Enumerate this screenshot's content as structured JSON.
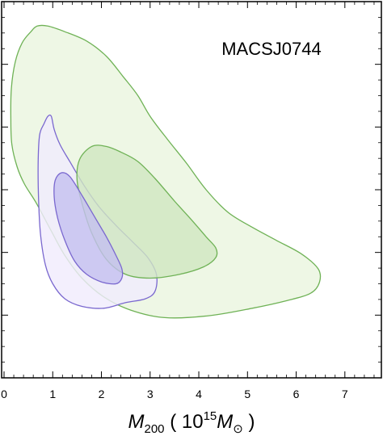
{
  "chart_data": {
    "type": "contour",
    "label": "MACSJ0744",
    "x_axis": {
      "label_main": "M",
      "label_sub": "200",
      "label_units_prefix": "( 10",
      "label_units_sup": "15",
      "label_units_M": "M",
      "label_units_sub": "⊙",
      "label_units_suffix": " )",
      "range": [
        -0.05,
        7.75
      ],
      "ticks": [
        0,
        1,
        2,
        3,
        4,
        5,
        6,
        7
      ],
      "tick_labels": [
        "0",
        "1",
        "2",
        "3",
        "4",
        "5",
        "6",
        "7"
      ]
    },
    "y_axis": {
      "tick_labels_visible": false,
      "range": [
        0,
        1
      ]
    },
    "grid": false,
    "series": [
      {
        "color": "#6fb256",
        "fill": "#eaf5df",
        "level": "outer",
        "points": [
          [
            0.23,
            0.84
          ],
          [
            0.37,
            0.89
          ],
          [
            0.55,
            0.92
          ],
          [
            0.68,
            0.935
          ],
          [
            0.9,
            0.935
          ],
          [
            1.25,
            0.92
          ],
          [
            1.7,
            0.895
          ],
          [
            2.1,
            0.855
          ],
          [
            2.45,
            0.8
          ],
          [
            2.75,
            0.75
          ],
          [
            3.0,
            0.695
          ],
          [
            3.35,
            0.635
          ],
          [
            3.75,
            0.57
          ],
          [
            4.15,
            0.5
          ],
          [
            4.6,
            0.44
          ],
          [
            5.1,
            0.4
          ],
          [
            5.6,
            0.365
          ],
          [
            6.1,
            0.33
          ],
          [
            6.45,
            0.29
          ],
          [
            6.48,
            0.255
          ],
          [
            6.3,
            0.225
          ],
          [
            5.8,
            0.205
          ],
          [
            5.1,
            0.185
          ],
          [
            4.2,
            0.165
          ],
          [
            3.3,
            0.16
          ],
          [
            2.6,
            0.18
          ],
          [
            2.05,
            0.215
          ],
          [
            1.6,
            0.265
          ],
          [
            1.25,
            0.325
          ],
          [
            0.95,
            0.395
          ],
          [
            0.66,
            0.465
          ],
          [
            0.42,
            0.515
          ],
          [
            0.27,
            0.56
          ],
          [
            0.16,
            0.62
          ],
          [
            0.14,
            0.69
          ],
          [
            0.15,
            0.77
          ]
        ]
      },
      {
        "color": "#7a68cf",
        "fill": "#f0ecfc",
        "level": "outer",
        "points": [
          [
            0.73,
            0.645
          ],
          [
            0.82,
            0.675
          ],
          [
            0.9,
            0.695
          ],
          [
            0.97,
            0.695
          ],
          [
            1.03,
            0.66
          ],
          [
            1.15,
            0.62
          ],
          [
            1.35,
            0.575
          ],
          [
            1.65,
            0.51
          ],
          [
            1.95,
            0.455
          ],
          [
            2.3,
            0.405
          ],
          [
            2.65,
            0.36
          ],
          [
            2.95,
            0.32
          ],
          [
            3.13,
            0.275
          ],
          [
            3.1,
            0.23
          ],
          [
            2.9,
            0.21
          ],
          [
            2.5,
            0.2
          ],
          [
            2.05,
            0.185
          ],
          [
            1.6,
            0.19
          ],
          [
            1.25,
            0.21
          ],
          [
            1.0,
            0.25
          ],
          [
            0.85,
            0.3
          ],
          [
            0.75,
            0.38
          ],
          [
            0.71,
            0.47
          ],
          [
            0.7,
            0.57
          ]
        ]
      },
      {
        "color": "#6fb256",
        "fill": "#cfe6c1",
        "level": "inner",
        "points": [
          [
            1.55,
            0.58
          ],
          [
            1.8,
            0.615
          ],
          [
            2.1,
            0.615
          ],
          [
            2.4,
            0.6
          ],
          [
            2.75,
            0.575
          ],
          [
            3.1,
            0.53
          ],
          [
            3.5,
            0.47
          ],
          [
            3.85,
            0.42
          ],
          [
            4.15,
            0.375
          ],
          [
            4.35,
            0.345
          ],
          [
            4.35,
            0.32
          ],
          [
            4.1,
            0.295
          ],
          [
            3.6,
            0.275
          ],
          [
            3.0,
            0.265
          ],
          [
            2.5,
            0.275
          ],
          [
            2.1,
            0.315
          ],
          [
            1.8,
            0.385
          ],
          [
            1.62,
            0.455
          ],
          [
            1.5,
            0.525
          ]
        ]
      },
      {
        "color": "#7a68cf",
        "fill": "#c4bff0",
        "level": "inner",
        "points": [
          [
            1.05,
            0.525
          ],
          [
            1.18,
            0.545
          ],
          [
            1.35,
            0.535
          ],
          [
            1.6,
            0.485
          ],
          [
            1.85,
            0.43
          ],
          [
            2.1,
            0.375
          ],
          [
            2.3,
            0.325
          ],
          [
            2.42,
            0.29
          ],
          [
            2.42,
            0.265
          ],
          [
            2.3,
            0.25
          ],
          [
            2.0,
            0.255
          ],
          [
            1.7,
            0.275
          ],
          [
            1.45,
            0.31
          ],
          [
            1.25,
            0.365
          ],
          [
            1.1,
            0.425
          ],
          [
            1.03,
            0.48
          ]
        ]
      }
    ]
  }
}
